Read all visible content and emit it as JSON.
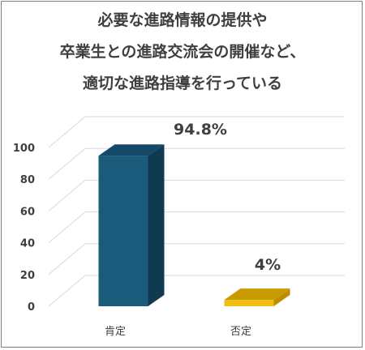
{
  "chart_data": {
    "type": "bar",
    "title_lines": [
      "必要な進路情報の提供や",
      "卒業生との進路交流会の開催など、",
      "適切な進路指導を行っている"
    ],
    "categories": [
      "肯定",
      "否定"
    ],
    "values": [
      94.8,
      4
    ],
    "data_labels": [
      "94.8%",
      "4%"
    ],
    "ylim": [
      0,
      100
    ],
    "yticks": [
      0,
      20,
      40,
      60,
      80,
      100
    ],
    "grid": true,
    "style": "3d-column",
    "colors": {
      "bar_front": [
        "#1a5a7a",
        "#f2be10"
      ],
      "bar_side": [
        "#103a4f",
        "#bf8e00"
      ],
      "bar_top": [
        "#14496a",
        "#c99a00"
      ],
      "gridline": "#d9d9d9",
      "text": "#3f3f3f"
    }
  }
}
